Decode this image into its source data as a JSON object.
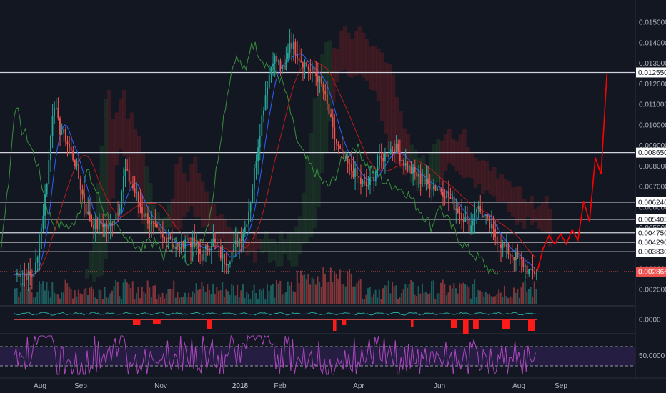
{
  "chart_data": [
    {
      "type": "candlestick",
      "panel": "price",
      "x_axis_labels": [
        "Aug",
        "Sep",
        "Nov",
        "2018",
        "Feb",
        "Apr",
        "Jun",
        "Aug",
        "Sep"
      ],
      "price_scale_labels": [
        "0.015000",
        "0.014000",
        "0.013000",
        "0.012000",
        "0.011000",
        "0.010000",
        "0.009000",
        "0.008000",
        "0.007000",
        "0.006000",
        "0.005000",
        "0.004000",
        "0.003000",
        "0.002000"
      ],
      "ylim": [
        0.0013,
        0.0158
      ],
      "horizontal_levels": [
        "0.012550",
        "0.008650",
        "0.006240",
        "0.005405",
        "0.004750",
        "0.004290",
        "0.003830"
      ],
      "current_price": "0.002866",
      "close_series": [
        0.0027,
        0.0029,
        0.0027,
        0.0026,
        0.0033,
        0.0055,
        0.0078,
        0.0113,
        0.0098,
        0.0095,
        0.0088,
        0.0081,
        0.0069,
        0.0058,
        0.0052,
        0.0051,
        0.0052,
        0.0049,
        0.0055,
        0.0061,
        0.0078,
        0.0072,
        0.0066,
        0.0059,
        0.0055,
        0.0051,
        0.0047,
        0.0044,
        0.0047,
        0.004,
        0.0039,
        0.0045,
        0.0043,
        0.0041,
        0.0036,
        0.004,
        0.0044,
        0.0039,
        0.0034,
        0.0035,
        0.0041,
        0.0045,
        0.0051,
        0.0065,
        0.0086,
        0.0105,
        0.0121,
        0.0133,
        0.013,
        0.0125,
        0.0141,
        0.0137,
        0.0132,
        0.0129,
        0.0126,
        0.0124,
        0.0118,
        0.0108,
        0.0095,
        0.0088,
        0.0083,
        0.0079,
        0.0076,
        0.0072,
        0.007,
        0.0073,
        0.008,
        0.0084,
        0.0087,
        0.009,
        0.0086,
        0.0081,
        0.0078,
        0.0076,
        0.0073,
        0.0071,
        0.0071,
        0.0069,
        0.0068,
        0.0065,
        0.0061,
        0.0058,
        0.0054,
        0.005,
        0.0061,
        0.0057,
        0.0053,
        0.0048,
        0.0044,
        0.0041,
        0.0038,
        0.0036,
        0.0034,
        0.0031,
        0.0027,
        0.0029
      ],
      "projection_polyline": [
        0.0029,
        0.004,
        0.0046,
        0.0042,
        0.0047,
        0.0042,
        0.0049,
        0.0044,
        0.0063,
        0.0053,
        0.0084,
        0.0076,
        0.0125
      ]
    },
    {
      "type": "line",
      "panel": "oscillator",
      "scale_label": "0.0000"
    },
    {
      "type": "line",
      "panel": "rsi",
      "scale_label": "50.0000"
    }
  ]
}
